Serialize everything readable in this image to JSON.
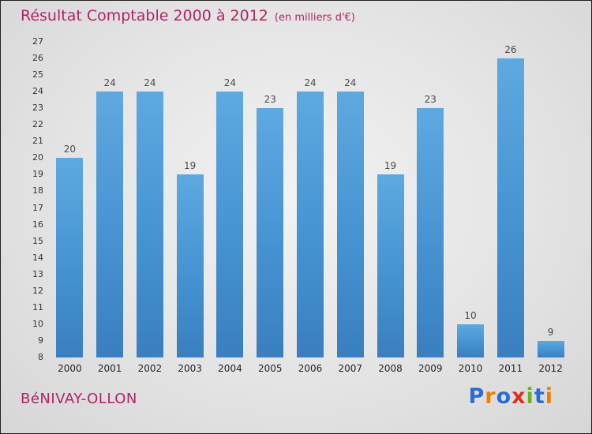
{
  "header": {
    "title": "Résultat Comptable 2000 à 2012",
    "subtitle": "(en milliers d'€)"
  },
  "footer": {
    "company": "BéNIVAY-OLLON",
    "logo_letters": [
      {
        "ch": "P",
        "color": "#2a6bd4"
      },
      {
        "ch": "r",
        "color": "#f07c00"
      },
      {
        "ch": "o",
        "color": "#2a6bd4"
      },
      {
        "ch": "x",
        "color": "#e02b20"
      },
      {
        "ch": "i",
        "color": "#6fae1f"
      },
      {
        "ch": "t",
        "color": "#2a6bd4"
      },
      {
        "ch": "i",
        "color": "#f07c00"
      }
    ]
  },
  "chart_data": {
    "type": "bar",
    "title": "Résultat Comptable 2000 à 2012",
    "subtitle": "(en milliers d'€)",
    "categories": [
      "2000",
      "2001",
      "2002",
      "2003",
      "2004",
      "2005",
      "2006",
      "2007",
      "2008",
      "2009",
      "2010",
      "2011",
      "2012"
    ],
    "values": [
      20,
      24,
      24,
      19,
      24,
      23,
      24,
      24,
      19,
      23,
      10,
      26,
      9
    ],
    "xlabel": "",
    "ylabel": "",
    "ylim": [
      8,
      27
    ],
    "yticks": [
      8,
      9,
      10,
      11,
      12,
      13,
      14,
      15,
      16,
      17,
      18,
      19,
      20,
      21,
      22,
      23,
      24,
      25,
      26,
      27
    ],
    "grid": false,
    "legend": false,
    "bar_color_top": "#5da9e0",
    "bar_color_bottom": "#3a7fc0",
    "title_color": "#b02468",
    "value_label_color": "#4a4a4a"
  }
}
